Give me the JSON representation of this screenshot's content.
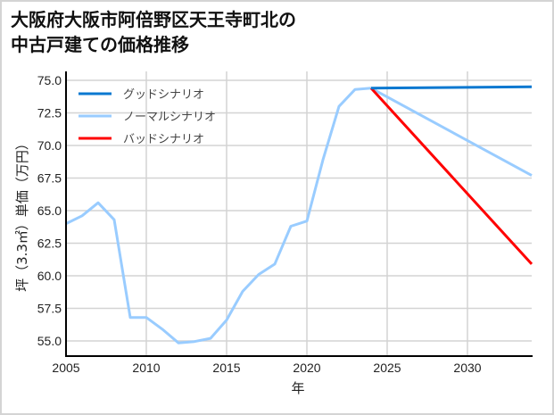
{
  "title": {
    "line1": "大阪府大阪市阿倍野区天王寺町北の",
    "line2": "中古戸建ての価格推移"
  },
  "chart_data": {
    "type": "line",
    "title": "大阪府大阪市阿倍野区天王寺町北の中古戸建ての価格推移",
    "xlabel": "年",
    "ylabel": "坪（3.3㎡）単価（万円）",
    "xlim": [
      2005,
      2034
    ],
    "ylim": [
      53.9,
      75.6
    ],
    "x_ticks": [
      2005,
      2010,
      2015,
      2020,
      2025,
      2030
    ],
    "y_ticks": [
      55.0,
      57.5,
      60.0,
      62.5,
      65.0,
      67.5,
      70.0,
      72.5,
      75.0
    ],
    "x_tick_labels": [
      "2005",
      "2010",
      "2015",
      "2020",
      "2025",
      "2030"
    ],
    "y_tick_labels": [
      "55.0",
      "57.5",
      "60.0",
      "62.5",
      "65.0",
      "67.5",
      "70.0",
      "72.5",
      "75.0"
    ],
    "grid": true,
    "legend_position": "upper left",
    "series": [
      {
        "name": "グッドシナリオ",
        "color": "#0a78d0",
        "x": [
          2024,
          2034
        ],
        "values": [
          74.4,
          74.5
        ]
      },
      {
        "name": "ノーマルシナリオ",
        "color": "#99ccff",
        "x": [
          2005,
          2006,
          2007,
          2008,
          2009,
          2010,
          2011,
          2012,
          2013,
          2014,
          2015,
          2016,
          2017,
          2018,
          2019,
          2020,
          2021,
          2022,
          2023,
          2024,
          2034
        ],
        "values": [
          64.0,
          64.6,
          65.6,
          64.3,
          56.8,
          56.8,
          55.9,
          54.85,
          54.95,
          55.2,
          56.6,
          58.8,
          60.1,
          60.9,
          63.8,
          64.2,
          68.9,
          73.0,
          74.3,
          74.4,
          67.7
        ]
      },
      {
        "name": "バッドシナリオ",
        "color": "#ff0000",
        "x": [
          2024,
          2034
        ],
        "values": [
          74.4,
          60.9
        ]
      }
    ]
  }
}
